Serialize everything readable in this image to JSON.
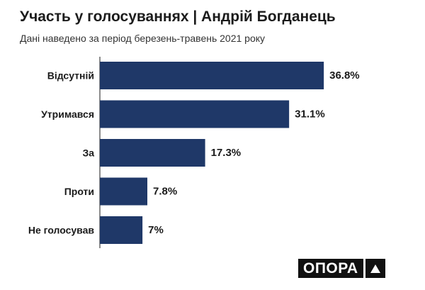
{
  "header": {
    "title": "Участь у голосуваннях | Андрій Богданець",
    "subtitle": "Дані наведено за період березень-травень 2021 року"
  },
  "logo": {
    "text": "ОПОРА"
  },
  "chart_data": {
    "type": "bar",
    "orientation": "horizontal",
    "title": "Участь у голосуваннях | Андрій Богданець",
    "subtitle": "Дані наведено за період березень-травень 2021 року",
    "categories": [
      "Відсутній",
      "Утримався",
      "За",
      "Проти",
      "Не голосував"
    ],
    "values": [
      36.8,
      31.1,
      17.3,
      7.8,
      7
    ],
    "value_labels": [
      "36.8%",
      "31.1%",
      "17.3%",
      "7.8%",
      "7%"
    ],
    "xlim": [
      0,
      40
    ],
    "grid": false,
    "bar_color": "#1f3868"
  }
}
